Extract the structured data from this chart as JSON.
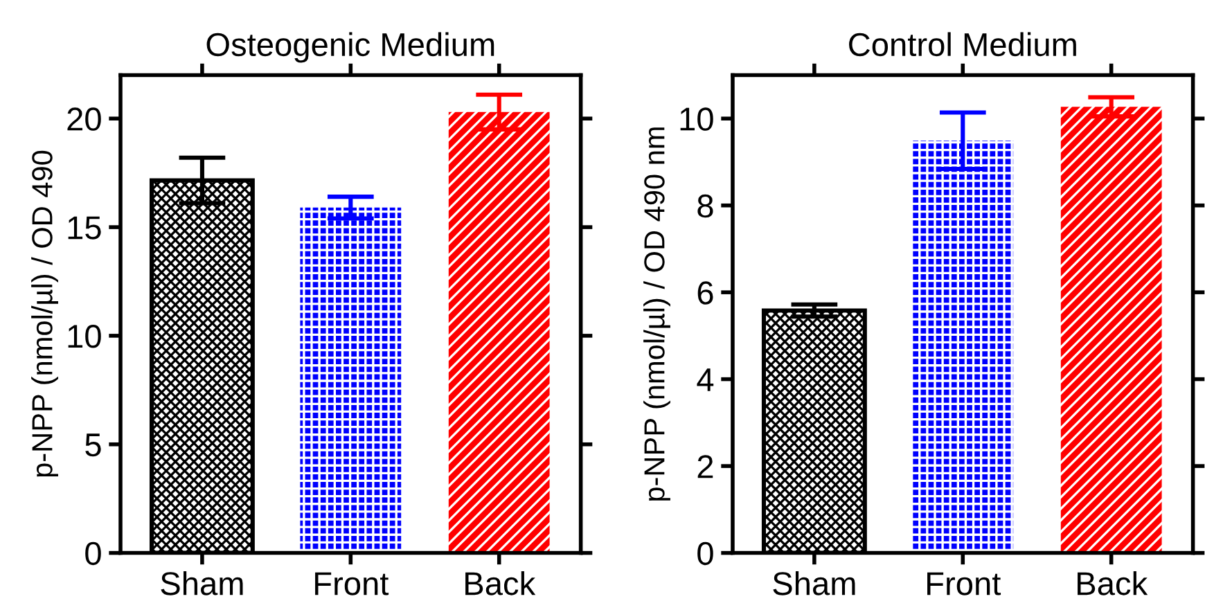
{
  "chart_data": [
    {
      "type": "bar",
      "title": "Osteogenic Medium",
      "ylabel": "p-NPP (nmol/µl) / OD 490",
      "categories": [
        "Sham",
        "Front",
        "Back"
      ],
      "values": [
        17.15,
        15.9,
        20.3
      ],
      "errors": [
        1.05,
        0.5,
        0.8
      ],
      "colors": [
        "#000000",
        "#0000ff",
        "#ff0000"
      ],
      "ylim": [
        0,
        22
      ],
      "yticks": [
        0,
        5,
        10,
        15,
        20
      ],
      "grid": false,
      "legend": false
    },
    {
      "type": "bar",
      "title": "Control Medium",
      "ylabel": "p-NPP (nmol/µl) / OD 490 nm",
      "categories": [
        "Sham",
        "Front",
        "Back"
      ],
      "values": [
        5.58,
        9.49,
        10.27
      ],
      "errors": [
        0.14,
        0.65,
        0.22
      ],
      "colors": [
        "#000000",
        "#0000ff",
        "#ff0000"
      ],
      "ylim": [
        0,
        11
      ],
      "yticks": [
        0,
        2,
        4,
        6,
        8,
        10
      ],
      "grid": false,
      "legend": false
    }
  ]
}
